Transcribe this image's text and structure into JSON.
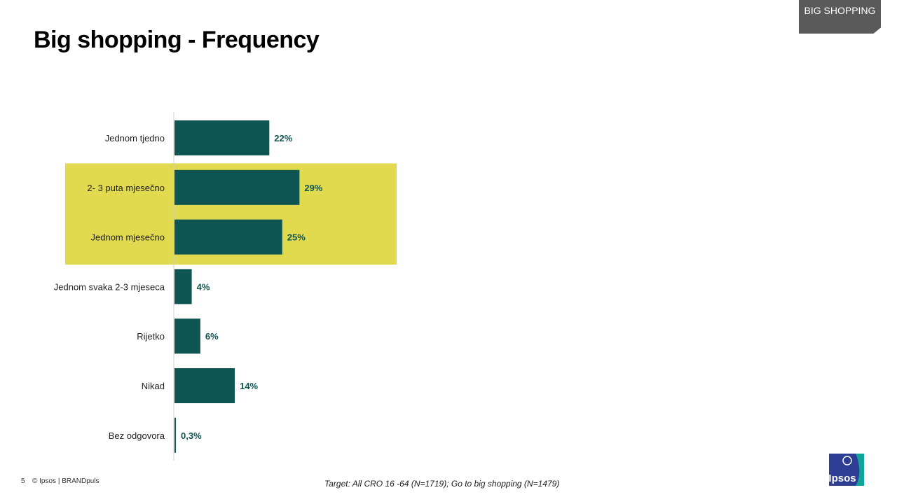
{
  "slide": {
    "title": "Big shopping - Frequency",
    "section_tag": "BIG SHOPPING",
    "page_number": "5",
    "copyright": "© Ipsos | BRANDpuls",
    "footnote": "Target: All CRO 16  -64 (N=1719);   Go to big shopping (N=1479)",
    "logo_text": "Ipsos"
  },
  "colors": {
    "bar": "#0e5553",
    "highlight": "#e1da4e",
    "value_text": "#0e5553",
    "section_tag_bg": "#5a5a5a"
  },
  "chart_data": {
    "type": "bar",
    "orientation": "horizontal",
    "categories": [
      "Jednom tjedno",
      "2- 3 puta mjesečno",
      "Jednom mjesečno",
      "Jednom svaka 2-3 mjeseca",
      "Rijetko",
      "Nikad",
      "Bez odgovora"
    ],
    "values": [
      22,
      29,
      25,
      4,
      6,
      14,
      0.3
    ],
    "value_labels": [
      "22%",
      "29%",
      "25%",
      "4%",
      "6%",
      "14%",
      "0,3%"
    ],
    "highlighted_categories": [
      "2- 3 puta mjesečno",
      "Jednom mjesečno"
    ],
    "unit": "%",
    "xlim": [
      0,
      40
    ],
    "grid": false,
    "legend": "none"
  }
}
